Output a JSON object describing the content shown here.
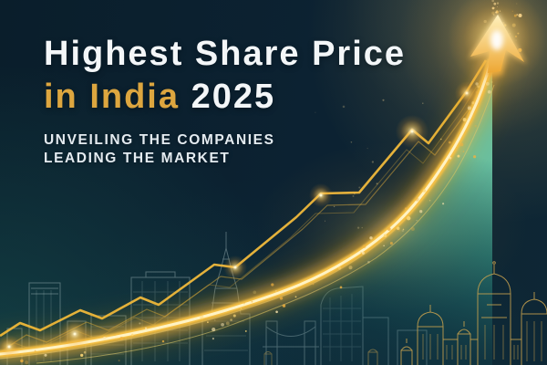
{
  "banner": {
    "title_line1": "Highest Share Price",
    "title_line2_highlight": "in India",
    "title_line2_year": "2025",
    "subtitle_line1": "UNVEILING THE COMPANIES",
    "subtitle_line2": "LEADING THE MARKET"
  },
  "colors": {
    "background": "#0c2232",
    "title_white": "#f3f6f8",
    "title_gold": "#dda63f",
    "trend_gold": "#f5c044",
    "trend_core": "#fff3c4",
    "area_teal": "#2e8d80",
    "grid_teal": "#6fe3d2",
    "skyline_line": "#cfe6e4",
    "landmark_gold": "#c9a24e"
  },
  "icons": {
    "up_arrow_icon": "▲",
    "sparkle_icon": "✦"
  }
}
